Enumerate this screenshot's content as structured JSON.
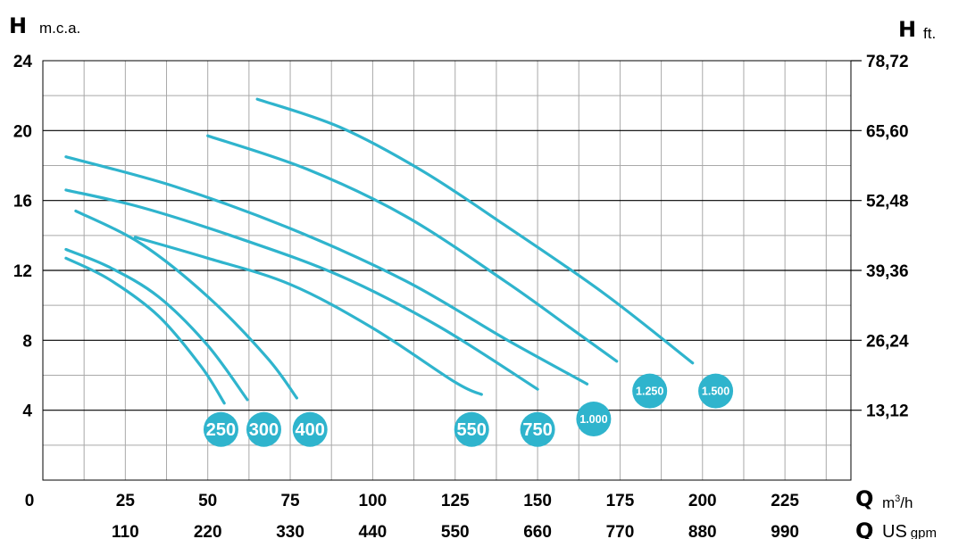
{
  "chart_data": {
    "type": "line",
    "y_left_label": {
      "symbol": "H",
      "unit": "m.c.a."
    },
    "y_right_label": {
      "symbol": "H",
      "unit": "ft."
    },
    "x_bottom_label": {
      "symbol": "Q",
      "unit": "m",
      "unit_sup": "3",
      "unit_tail": "/h"
    },
    "x_second_label": {
      "symbol": "Q",
      "unit": "US",
      "unit_sub": "gpm"
    },
    "x_ticks": [
      "0",
      "25",
      "50",
      "75",
      "100",
      "125",
      "150",
      "175",
      "200",
      "225"
    ],
    "x_ticks_gpm": [
      "110",
      "220",
      "330",
      "440",
      "550",
      "660",
      "770",
      "880",
      "990"
    ],
    "y_ticks": [
      "4",
      "8",
      "12",
      "16",
      "20",
      "24"
    ],
    "y_ticks_ft": [
      "13,12",
      "26,24",
      "39,36",
      "52,48",
      "65,60",
      "78,72"
    ],
    "xlim": [
      0,
      245
    ],
    "ylim": [
      0,
      24
    ],
    "grid": true,
    "line_color": "#2fb4cd",
    "badge_color": "#2fb4cd",
    "series": [
      {
        "name": "250",
        "points": [
          [
            7,
            12.7
          ],
          [
            20,
            11.5
          ],
          [
            35,
            9.4
          ],
          [
            48,
            6.5
          ],
          [
            55,
            4.4
          ]
        ],
        "badge": [
          54,
          2.9
        ],
        "badge_size": "large"
      },
      {
        "name": "300",
        "points": [
          [
            7,
            13.2
          ],
          [
            20,
            12.2
          ],
          [
            35,
            10.5
          ],
          [
            50,
            7.7
          ],
          [
            62,
            4.6
          ]
        ],
        "badge": [
          67,
          2.9
        ],
        "badge_size": "large"
      },
      {
        "name": "400",
        "points": [
          [
            10,
            15.4
          ],
          [
            30,
            13.5
          ],
          [
            50,
            10.5
          ],
          [
            68,
            7.0
          ],
          [
            77,
            4.7
          ]
        ],
        "badge": [
          81,
          2.9
        ],
        "badge_size": "large"
      },
      {
        "name": "550",
        "points": [
          [
            28,
            13.9
          ],
          [
            50,
            12.7
          ],
          [
            75,
            11.2
          ],
          [
            100,
            8.7
          ],
          [
            125,
            5.6
          ],
          [
            133,
            4.9
          ]
        ],
        "badge": [
          130,
          2.9
        ],
        "badge_size": "large"
      },
      {
        "name": "750",
        "points": [
          [
            7,
            16.6
          ],
          [
            30,
            15.6
          ],
          [
            60,
            13.8
          ],
          [
            90,
            11.7
          ],
          [
            120,
            8.8
          ],
          [
            150,
            5.2
          ]
        ],
        "badge": [
          150,
          2.9
        ],
        "badge_size": "large"
      },
      {
        "name": "1.000",
        "points": [
          [
            7,
            18.5
          ],
          [
            40,
            16.8
          ],
          [
            75,
            14.4
          ],
          [
            110,
            11.4
          ],
          [
            140,
            8.1
          ],
          [
            165,
            5.5
          ]
        ],
        "badge": [
          167,
          3.5
        ],
        "badge_size": "small"
      },
      {
        "name": "1.250",
        "points": [
          [
            50,
            19.7
          ],
          [
            80,
            17.8
          ],
          [
            110,
            15.1
          ],
          [
            140,
            11.4
          ],
          [
            160,
            8.7
          ],
          [
            174,
            6.8
          ]
        ],
        "badge": [
          184,
          5.1
        ],
        "badge_size": "small"
      },
      {
        "name": "1.500",
        "points": [
          [
            65,
            21.8
          ],
          [
            90,
            20.2
          ],
          [
            115,
            17.7
          ],
          [
            140,
            14.6
          ],
          [
            170,
            10.7
          ],
          [
            197,
            6.7
          ]
        ],
        "badge": [
          204,
          5.1
        ],
        "badge_size": "small"
      }
    ]
  }
}
